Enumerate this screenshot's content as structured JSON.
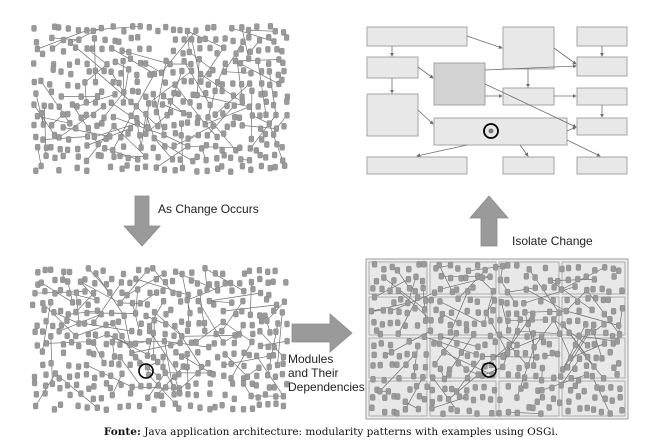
{
  "labels": {
    "change_occurs": "As Change Occurs",
    "isolate_change": "Isolate Change",
    "modules_line1": "Modules",
    "modules_line2": "and Their",
    "modules_line3": "Dependencies"
  },
  "caption": {
    "prefix": "Fonte:",
    "text": "Java application architecture: modularity patterns with examples using OSGi."
  },
  "colors": {
    "node": "#9a9a9a",
    "edge": "#6e6e6e",
    "module_fill": "#e8e8e8",
    "module_dark": "#d2d2d2",
    "module_stroke": "#9c9c9c",
    "arrow_fill": "#9a9a9a",
    "highlight_ring": "#000000"
  },
  "icons": {
    "down_arrow": "arrow-down-icon",
    "right_arrow": "arrow-right-icon",
    "up_arrow": "arrow-up-icon",
    "change_marker": "circle-highlight-icon"
  }
}
